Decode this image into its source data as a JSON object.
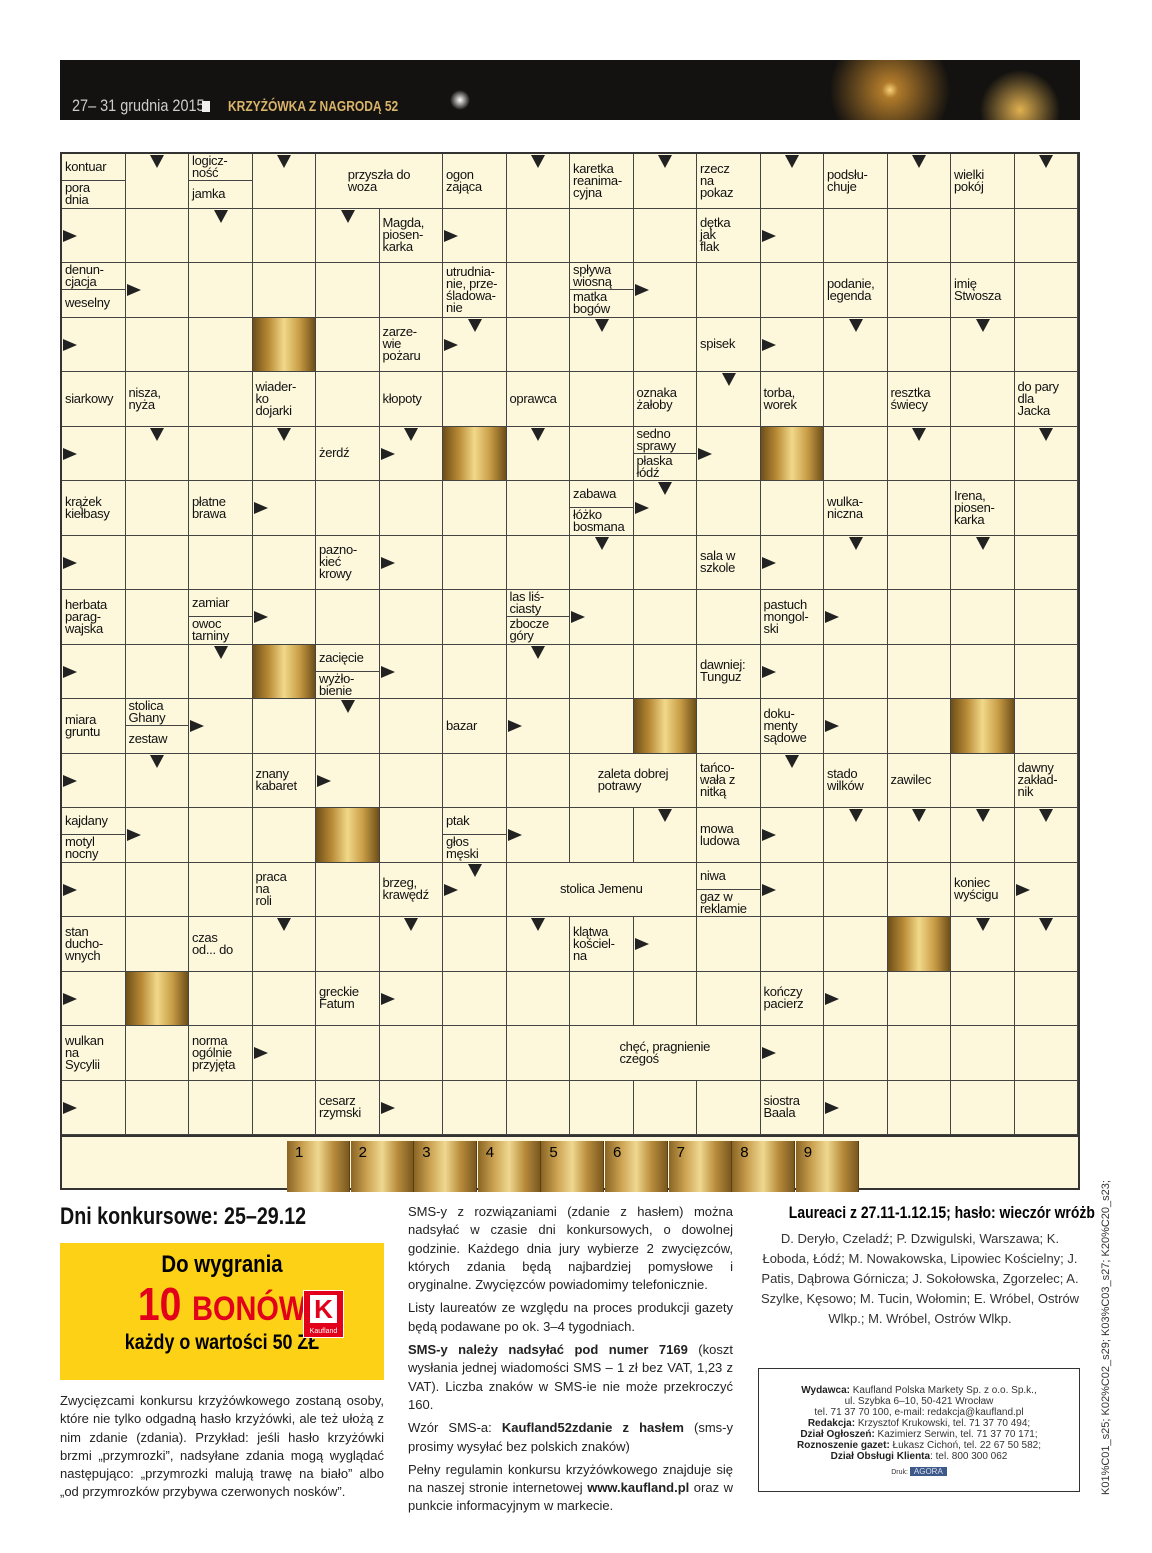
{
  "header": {
    "date": "27– 31 grudnia 2015",
    "title": "KRZYŻÓWKA Z NAGRODĄ 52"
  },
  "crossword": {
    "clues": [
      "kontuar",
      "pora\ndnia",
      "logicz-\nność",
      "jamka",
      "przyszła do\nwoza",
      "ogon\nzająca",
      "karetka\nreanima-\ncyjna",
      "rzecz\nna\npokaz",
      "podsłu-\nchuje",
      "wielki\npokój",
      "Magda,\npiosen-\nkarka",
      "dętka\njak\nflak",
      "denun-\ncjacja",
      "weselny",
      "utrudnia-\nnie, prze-\nśladowa-\nnie",
      "spływa\nwiosną",
      "matka\nbogów",
      "podanie,\nlegenda",
      "imię\nStwosza",
      "zarze-\nwie\npożaru",
      "spisek",
      "siarkowy",
      "nisza,\nnyża",
      "wiader-\nko\ndojarki",
      "kłopoty",
      "oprawca",
      "oznaka\nżałoby",
      "torba,\nworek",
      "resztka\nświecy",
      "do pary\ndla\nJacka",
      "żerdź",
      "sedno\nsprawy",
      "płaska\nłódź",
      "krążek\nkiełbasy",
      "płatne\nbrawa",
      "zabawa",
      "łóżko\nbosmana",
      "wulka-\nniczna",
      "Irena,\npiosen-\nkarka",
      "pazno-\nkieć\nkrowy",
      "sala w\nszkole",
      "herbata\nparag-\nwajska",
      "zamiar",
      "owoc\ntarniny",
      "las liś-\nciasty",
      "zbocze\ngóry",
      "pastuch\nmongol-\nski",
      "zacięcie",
      "wyżło-\nbienie",
      "dawniej:\nTunguz",
      "miara\ngruntu",
      "stolica\nGhany",
      "zestaw",
      "bazar",
      "doku-\nmenty\nsądowe",
      "znany\nkabaret",
      "zaleta dobrej\npotrawy",
      "tańco-\nwała z\nnitką",
      "stado\nwilków",
      "zawilec",
      "dawny\nzakład-\nnik",
      "kajdany",
      "motyl\nnocny",
      "ptak",
      "głos\nmęski",
      "mowa\nludowa",
      "praca\nna\nroli",
      "brzeg,\nkrawędź",
      "stolica Jemenu",
      "niwa",
      "gaz w\nreklamie",
      "koniec\nwyścigu",
      "stan\nducho-\nwnych",
      "czas\nod... do",
      "klątwa\nkościel-\nna",
      "greckie\nFatum",
      "kończy\npacierz",
      "wulkan\nna\nSycylii",
      "norma\nogólnie\nprzyjęta",
      "chęć, pragnienie\nczegoś",
      "cesarz\nrzymski",
      "siostra\nBaala"
    ],
    "solution_numbers": [
      "1",
      "2",
      "3",
      "4",
      "5",
      "6",
      "7",
      "8",
      "9"
    ]
  },
  "contest": {
    "days": "Dni konkursowe: 25–29.12",
    "prize_line1": "Do wygrania",
    "prize_count": "10",
    "prize_unit": "BONÓW",
    "prize_line3": "każdy o wartości 50 ZŁ",
    "logo_text": "Kaufland",
    "rules_left": "Zwycięzcami konkursu krzyżówkowego zostaną osoby, które nie tylko odgadną hasło krzyżówki, ale też ułożą z nim zdanie (zdania). Przykład: jeśli hasło krzyżówki brzmi „przymrozki”, nadsyłane zdania mogą wyglądać następująco: „przymrozki malują trawę na biało” albo „od przymrozków przybywa czerwonych nosków”.",
    "rules_p1": "SMS-y z rozwiązaniami (zdanie z hasłem) można nadsyłać w czasie dni konkursowych, o dowolnej godzinie. Każdego dnia jury wybierze 2 zwycięzców, których zdania będą najbardziej pomysłowe i oryginalne. Zwycięzców powiadomimy telefonicznie.",
    "rules_p2": "Listy laureatów ze względu na proces produkcji gazety będą podawane po ok. 3–4 tygodniach.",
    "rules_p3_bold": "SMS-y należy nadsyłać pod numer 7169",
    "rules_p3": " (koszt wysłania jednej wiadomości SMS – 1 zł bez VAT, 1,23 z VAT). Liczba znaków w SMS-ie nie może przekroczyć 160.",
    "rules_p4_a": "Wzór SMS-a: ",
    "rules_p4_bold": "Kaufland52zdanie z hasłem",
    "rules_p4_b": " (sms-y prosimy wysyłać bez polskich znaków)",
    "rules_p5": "Pełny regulamin konkursu krzyżówkowego znajduje się na naszej stronie internetowej ",
    "rules_p5_link": "www.kaufland.pl",
    "rules_p5_b": " oraz w punkcie informacyjnym w markecie."
  },
  "laureates": {
    "heading": "Laureaci z 27.11-1.12.15; hasło: wieczór wróżb",
    "names": "D. Deryło, Czeladź; P. Dzwigulski, Warszawa; K. Łoboda, Łódź; M. Nowakowska, Lipowiec Kościelny; J. Patis, Dąbrowa Górnicza; J. Sokołowska, Zgorzelec; A. Szylke, Kęsowo; M. Tucin, Wołomin; E. Wróbel, Ostrów Wlkp.; M. Wróbel, Ostrów Wlkp."
  },
  "publisher": {
    "l1_label": "Wydawca:",
    "l1": " Kaufland Polska Markety Sp. z o.o. Sp.k.,",
    "l2": "ul. Szybka 6–10, 50-421 Wrocław",
    "l3": "tel. 71 37 70 100, e-mail: redakcja@kaufland.pl",
    "l4_label": "Redakcja:",
    "l4": " Krzysztof Krukowski, tel. 71 37 70 494;",
    "l5_label": "Dział Ogłoszeń:",
    "l5": " Kazimierz Serwin, tel. 71 37 70 171;",
    "l6_label": "Roznoszenie gazet:",
    "l6": " Łukasz Cichoń, tel. 22 67 50 582;",
    "l7_label": "Dział Obsługi Klienta",
    "l7": ": tel. 800 300 062",
    "druk_label": "Druk:",
    "druk_logo": "AGORA"
  },
  "side_code": "K01%C01_s25;  K02%C02_s29;  K03%C03_s27;  K20%C20_s23;"
}
